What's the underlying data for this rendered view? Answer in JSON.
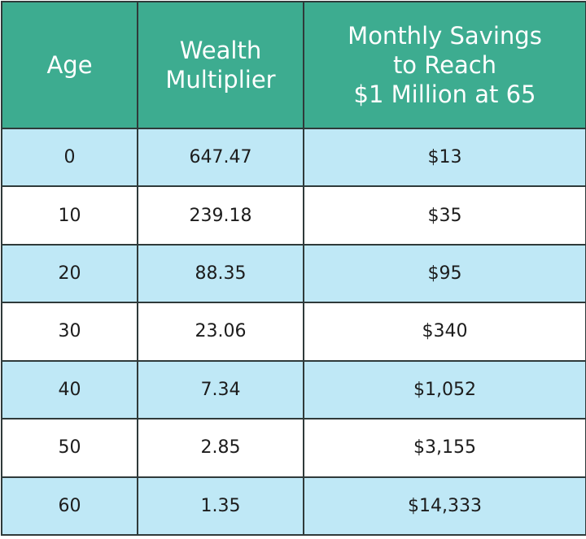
{
  "table": {
    "header": [
      [
        "Age"
      ],
      [
        "Wealth",
        "Multiplier"
      ],
      [
        "Monthly Savings",
        "to Reach",
        "$1 Million at 65"
      ]
    ],
    "rows": [
      [
        "0",
        "647.47",
        "$13"
      ],
      [
        "10",
        "239.18",
        "$35"
      ],
      [
        "20",
        "88.35",
        "$95"
      ],
      [
        "30",
        "23.06",
        "$340"
      ],
      [
        "40",
        "7.34",
        "$1,052"
      ],
      [
        "50",
        "2.85",
        "$3,155"
      ],
      [
        "60",
        "1.35",
        "$14,333"
      ]
    ]
  }
}
